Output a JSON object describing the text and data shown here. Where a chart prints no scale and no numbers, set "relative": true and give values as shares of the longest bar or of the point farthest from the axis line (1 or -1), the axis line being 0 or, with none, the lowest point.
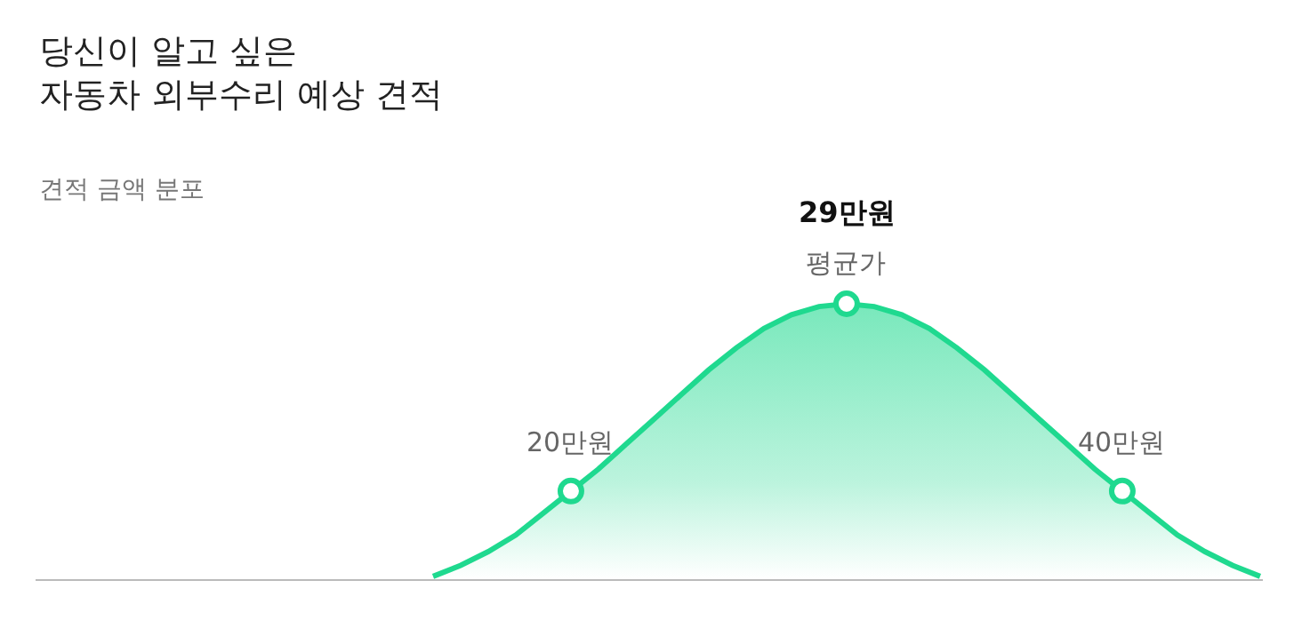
{
  "chart_data": {
    "type": "area",
    "title": "당신이 알고 싶은\n자동차 외부수리 예상 견적",
    "subtitle": "견적 금액 분포",
    "relative": true,
    "categories": [
      null,
      null,
      null,
      null,
      null,
      "20만원",
      null,
      null,
      null,
      null,
      null,
      null,
      null,
      null,
      null,
      null,
      null,
      null,
      null,
      null,
      null,
      null,
      null,
      null,
      null,
      "40만원",
      null,
      null,
      null,
      null,
      null
    ],
    "annotations": [
      "29만원",
      "평균가"
    ],
    "series": [
      {
        "color": "#1fd98f",
        "values": [
          0.01,
          0.05,
          0.1,
          0.16,
          0.24,
          0.32,
          0.4,
          0.49,
          0.58,
          0.67,
          0.76,
          0.84,
          0.91,
          0.96,
          0.99,
          1,
          0.99,
          0.96,
          0.91,
          0.84,
          0.76,
          0.67,
          0.58,
          0.49,
          0.4,
          0.32,
          0.24,
          0.16,
          0.1,
          0.05,
          0.01
        ]
      },
      {
        "type": "scatter",
        "color": "#1fd98f",
        "marker": "circle",
        "values": [
          null,
          null,
          null,
          null,
          null,
          0.32,
          null,
          null,
          null,
          null,
          null,
          null,
          null,
          null,
          null,
          1,
          null,
          null,
          null,
          null,
          null,
          null,
          null,
          null,
          null,
          0.32,
          null,
          null,
          null,
          null,
          null
        ]
      }
    ]
  }
}
